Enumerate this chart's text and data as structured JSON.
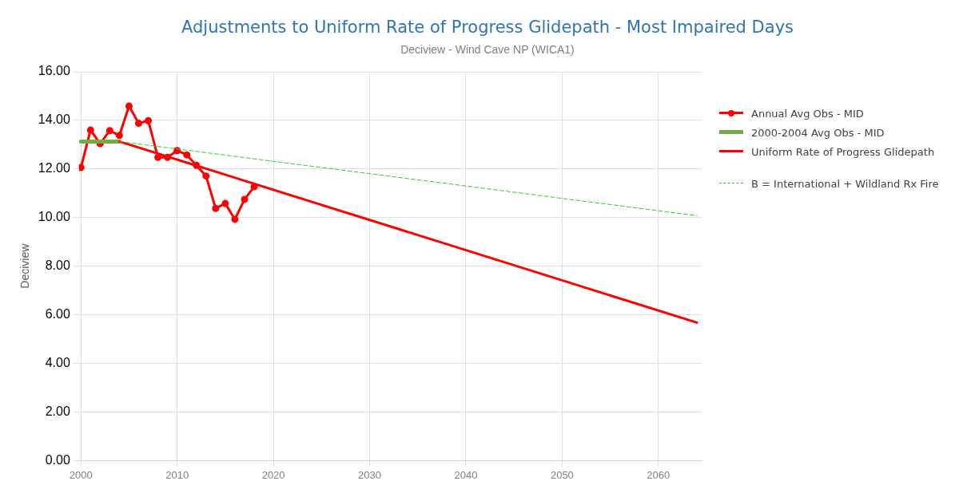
{
  "chart_data": {
    "type": "line",
    "title": "Adjustments to Uniform Rate of Progress Glidepath - Most Impaired Days",
    "subtitle": "Deciview - Wind Cave NP (WICA1)",
    "ylabel": "Deciview",
    "xlim": [
      1999.8,
      2064.5
    ],
    "xticks": [
      2000,
      2010,
      2020,
      2030,
      2040,
      2050,
      2060
    ],
    "ylim": [
      0,
      16
    ],
    "yticks": [
      {
        "value": 0,
        "label": "0.00"
      },
      {
        "value": 2,
        "label": "2.00"
      },
      {
        "value": 4,
        "label": "4.00"
      },
      {
        "value": 6,
        "label": "6.00"
      },
      {
        "value": 8,
        "label": "8.00"
      },
      {
        "value": 10,
        "label": "10.00"
      },
      {
        "value": 12,
        "label": "12.00"
      },
      {
        "value": 14,
        "label": "14.00"
      },
      {
        "value": 16,
        "label": "16.00"
      }
    ],
    "grid": true,
    "legend": "right",
    "series": [
      {
        "name": "Annual Avg Obs - MID",
        "color": "#ff0000",
        "marker": "circle",
        "x": [
          2000,
          2001,
          2002,
          2003,
          2004,
          2005,
          2006,
          2007,
          2008,
          2009,
          2010,
          2011,
          2012,
          2013,
          2014,
          2015,
          2016,
          2017,
          2018
        ],
        "values": [
          12.06,
          13.6,
          13.04,
          13.58,
          13.38,
          14.59,
          13.88,
          13.99,
          12.48,
          12.48,
          12.76,
          12.58,
          12.15,
          11.71,
          10.38,
          10.58,
          9.93,
          10.75,
          11.27
        ]
      },
      {
        "name": "2000-2004 Avg Obs - MID",
        "color": "#70ad47",
        "marker": "none",
        "x": [
          2000,
          2004
        ],
        "values": [
          13.13,
          13.13
        ]
      },
      {
        "name": "Uniform Rate of Progress Glidepath",
        "color": "#ff0000",
        "marker": "none",
        "x": [
          2004,
          2064
        ],
        "values": [
          13.13,
          5.68
        ]
      },
      {
        "name": "B = International + Wildland Rx Fire",
        "color": "#33cc33",
        "marker": "none",
        "line_style": "dashed",
        "x": [
          2004,
          2064
        ],
        "values": [
          13.13,
          10.08
        ]
      }
    ]
  }
}
